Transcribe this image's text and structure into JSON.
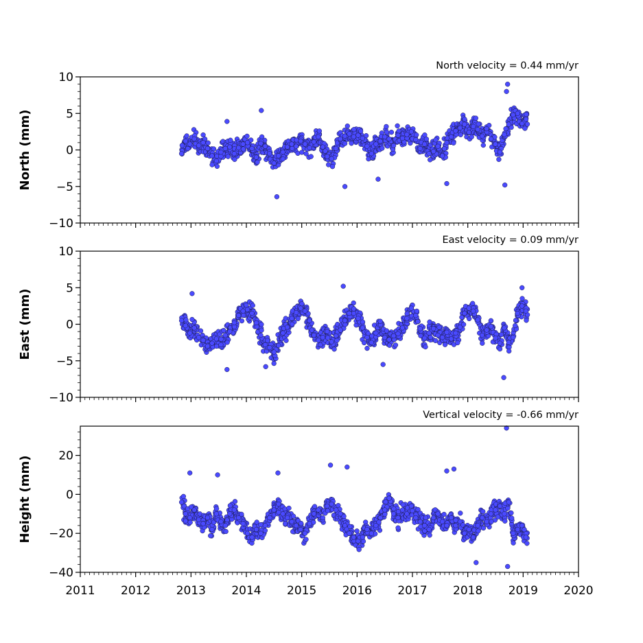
{
  "chart_data": [
    {
      "type": "scatter",
      "velocity_label": "North velocity = 0.44 mm/yr",
      "ylabel": "North (mm)",
      "ylim": [
        -10,
        10
      ],
      "yticks": [
        -10,
        -5,
        0,
        5,
        10
      ],
      "xlim": [
        2011,
        2020
      ],
      "xticks": [
        2011,
        2012,
        2013,
        2014,
        2015,
        2016,
        2017,
        2018,
        2019,
        2020
      ],
      "x_tick_labels_shown": false,
      "marker_color": "#4a4aff",
      "series": [
        {
          "x": [
            2012.83,
            2012.9,
            2012.98,
            2013.06,
            2013.14,
            2013.22,
            2013.3,
            2013.38,
            2013.46,
            2013.54,
            2013.62,
            2013.7,
            2013.78,
            2013.86,
            2013.94,
            2014.02,
            2014.1,
            2014.18,
            2014.26,
            2014.34,
            2014.42,
            2014.5,
            2014.58,
            2014.66,
            2014.74,
            2014.82,
            2014.9,
            2014.98,
            2015.06,
            2015.14,
            2015.22,
            2015.3,
            2015.38,
            2015.46,
            2015.54,
            2015.62,
            2015.7,
            2015.78,
            2015.86,
            2015.94,
            2016.02,
            2016.1,
            2016.18,
            2016.26,
            2016.34,
            2016.42,
            2016.5,
            2016.58,
            2016.66,
            2016.74,
            2016.82,
            2016.9,
            2016.98,
            2017.06,
            2017.14,
            2017.22,
            2017.3,
            2017.38,
            2017.46,
            2017.54,
            2017.62,
            2017.7,
            2017.78,
            2017.86,
            2017.94,
            2018.02,
            2018.1,
            2018.18,
            2018.26,
            2018.34,
            2018.42,
            2018.5,
            2018.58,
            2018.66,
            2018.74,
            2018.82,
            2018.9,
            2018.98,
            2019.05,
            2013.65,
            2014.27,
            2014.55,
            2015.78,
            2016.38,
            2017.62,
            2018.67,
            2018.7,
            2018.72
          ],
          "y": [
            -0.5,
            1.2,
            0.8,
            1.5,
            0.6,
            1.0,
            0.2,
            -0.8,
            -1.5,
            -0.3,
            0.2,
            0.4,
            -0.5,
            0.3,
            0.8,
            1.0,
            0.2,
            -1.0,
            0.9,
            0.5,
            -0.5,
            -1.8,
            -0.8,
            -0.3,
            0.4,
            0.8,
            0.5,
            1.2,
            0.8,
            0.3,
            1.1,
            1.8,
            0.4,
            -0.9,
            -1.2,
            0.2,
            1.5,
            1.9,
            2.2,
            1.8,
            2.0,
            1.6,
            0.5,
            -0.5,
            0.8,
            1.2,
            1.8,
            1.5,
            0.6,
            2.0,
            1.6,
            2.1,
            2.5,
            1.4,
            0.2,
            0.8,
            -0.5,
            -0.2,
            0.5,
            -0.8,
            1.0,
            1.8,
            2.6,
            3.0,
            3.5,
            2.4,
            3.2,
            2.8,
            1.9,
            2.9,
            1.5,
            0.8,
            -0.3,
            2.1,
            3.5,
            4.8,
            5.0,
            3.6,
            4.2,
            3.9,
            5.4,
            -6.4,
            -5.0,
            -4.0,
            -4.6,
            -4.8,
            8.0,
            9.0
          ]
        }
      ]
    },
    {
      "type": "scatter",
      "velocity_label": "East velocity = 0.09 mm/yr",
      "ylabel": "East (mm)",
      "ylim": [
        -10,
        10
      ],
      "yticks": [
        -10,
        -5,
        0,
        5,
        10
      ],
      "xlim": [
        2011,
        2020
      ],
      "xticks": [
        2011,
        2012,
        2013,
        2014,
        2015,
        2016,
        2017,
        2018,
        2019,
        2020
      ],
      "x_tick_labels_shown": false,
      "marker_color": "#4a4aff",
      "series": [
        {
          "x": [
            2012.83,
            2012.9,
            2012.98,
            2013.06,
            2013.14,
            2013.22,
            2013.3,
            2013.38,
            2013.46,
            2013.54,
            2013.62,
            2013.7,
            2013.78,
            2013.86,
            2013.94,
            2014.02,
            2014.1,
            2014.18,
            2014.26,
            2014.34,
            2014.42,
            2014.5,
            2014.58,
            2014.66,
            2014.74,
            2014.82,
            2014.9,
            2014.98,
            2015.06,
            2015.14,
            2015.22,
            2015.3,
            2015.38,
            2015.46,
            2015.54,
            2015.62,
            2015.7,
            2015.78,
            2015.86,
            2015.94,
            2016.02,
            2016.1,
            2016.18,
            2016.26,
            2016.34,
            2016.42,
            2016.5,
            2016.58,
            2016.66,
            2016.74,
            2016.82,
            2016.9,
            2016.98,
            2017.06,
            2017.14,
            2017.22,
            2017.3,
            2017.38,
            2017.46,
            2017.54,
            2017.62,
            2017.7,
            2017.78,
            2017.86,
            2017.94,
            2018.02,
            2018.1,
            2018.18,
            2018.26,
            2018.34,
            2018.42,
            2018.5,
            2018.58,
            2018.66,
            2018.74,
            2018.82,
            2018.9,
            2018.98,
            2019.05,
            2013.02,
            2013.65,
            2014.35,
            2015.75,
            2016.47,
            2018.65,
            2018.98
          ],
          "y": [
            0.5,
            -0.2,
            -1.2,
            -0.5,
            -1.8,
            -2.2,
            -3.0,
            -2.6,
            -2.0,
            -2.8,
            -1.5,
            -1.0,
            0.2,
            1.2,
            1.8,
            2.0,
            1.5,
            0.2,
            -1.5,
            -2.8,
            -3.2,
            -3.8,
            -2.9,
            -1.2,
            -0.4,
            0.8,
            1.6,
            2.2,
            1.8,
            0.5,
            -1.5,
            -2.2,
            -1.8,
            -1.0,
            -2.4,
            -1.6,
            -0.8,
            0.5,
            1.5,
            2.1,
            0.8,
            -0.5,
            -1.8,
            -2.5,
            -1.2,
            0.4,
            -1.8,
            -2.1,
            -1.6,
            -1.3,
            -0.5,
            0.8,
            2.2,
            1.2,
            -0.6,
            -1.9,
            -1.2,
            -0.6,
            -1.5,
            -1.8,
            -1.1,
            -2.0,
            -1.2,
            -0.4,
            1.5,
            2.2,
            1.8,
            0.6,
            -1.5,
            -0.8,
            -0.3,
            -1.9,
            -2.6,
            -0.5,
            -2.5,
            -1.8,
            1.5,
            2.5,
            1.8,
            4.2,
            -6.2,
            -5.8,
            5.2,
            -5.5,
            -7.3,
            5.0
          ]
        }
      ]
    },
    {
      "type": "scatter",
      "velocity_label": "Vertical velocity = -0.66 mm/yr",
      "ylabel": "Height (mm)",
      "ylim": [
        -40,
        35
      ],
      "yticks": [
        -40,
        -20,
        0,
        20
      ],
      "xlim": [
        2011,
        2020
      ],
      "xticks": [
        2011,
        2012,
        2013,
        2014,
        2015,
        2016,
        2017,
        2018,
        2019,
        2020
      ],
      "xtick_labels": [
        "2011",
        "2012",
        "2013",
        "2014",
        "2015",
        "2016",
        "2017",
        "2018",
        "2019",
        "2020"
      ],
      "x_tick_labels_shown": true,
      "marker_color": "#4a4aff",
      "series": [
        {
          "x": [
            2012.83,
            2012.9,
            2012.98,
            2013.06,
            2013.14,
            2013.22,
            2013.3,
            2013.38,
            2013.46,
            2013.54,
            2013.62,
            2013.7,
            2013.78,
            2013.86,
            2013.94,
            2014.02,
            2014.1,
            2014.18,
            2014.26,
            2014.34,
            2014.42,
            2014.5,
            2014.58,
            2014.66,
            2014.74,
            2014.82,
            2014.9,
            2014.98,
            2015.06,
            2015.14,
            2015.22,
            2015.3,
            2015.38,
            2015.46,
            2015.54,
            2015.62,
            2015.7,
            2015.78,
            2015.86,
            2015.94,
            2016.02,
            2016.1,
            2016.18,
            2016.26,
            2016.34,
            2016.42,
            2016.5,
            2016.58,
            2016.66,
            2016.74,
            2016.82,
            2016.9,
            2016.98,
            2017.06,
            2017.14,
            2017.22,
            2017.3,
            2017.38,
            2017.46,
            2017.54,
            2017.62,
            2017.7,
            2017.78,
            2017.86,
            2017.94,
            2018.02,
            2018.1,
            2018.18,
            2018.26,
            2018.34,
            2018.42,
            2018.5,
            2018.58,
            2018.66,
            2018.74,
            2018.82,
            2018.9,
            2018.98,
            2019.05,
            2012.98,
            2013.48,
            2014.57,
            2015.52,
            2015.82,
            2017.62,
            2017.75,
            2018.15,
            2018.7,
            2018.72
          ],
          "y": [
            -4,
            -10,
            -12,
            -8,
            -13,
            -15,
            -12,
            -18,
            -10,
            -14,
            -16,
            -10,
            -8,
            -12,
            -15,
            -20,
            -22,
            -18,
            -20,
            -16,
            -12,
            -8,
            -5,
            -10,
            -12,
            -14,
            -16,
            -18,
            -20,
            -15,
            -10,
            -8,
            -12,
            -6,
            -5,
            -8,
            -10,
            -16,
            -20,
            -22,
            -24,
            -22,
            -18,
            -20,
            -16,
            -12,
            -8,
            -2,
            -10,
            -12,
            -8,
            -10,
            -6,
            -12,
            -14,
            -16,
            -18,
            -12,
            -10,
            -14,
            -16,
            -12,
            -16,
            -14,
            -20,
            -18,
            -22,
            -16,
            -12,
            -14,
            -10,
            -8,
            -6,
            -10,
            -4,
            -20,
            -18,
            -16,
            -22,
            11,
            10,
            11,
            15,
            14,
            12,
            13,
            -35,
            34,
            -37
          ]
        }
      ]
    }
  ]
}
